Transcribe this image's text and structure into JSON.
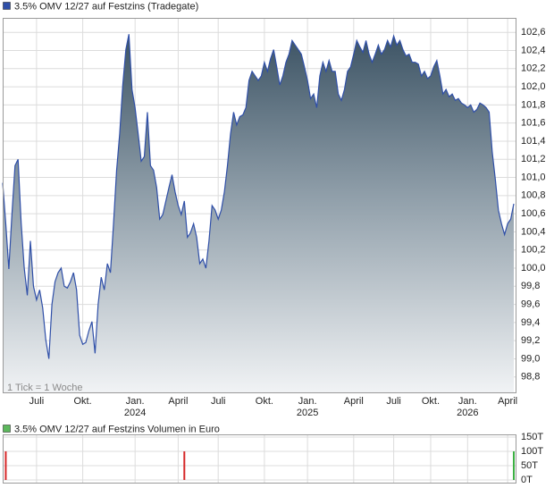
{
  "chart_data": [
    {
      "type": "area",
      "title": "3.5% OMV 12/27 auf Festzins (Tradegate)",
      "annotation": "1 Tick = 1 Woche",
      "color": "#2f4fa8",
      "grid": true,
      "ylim": [
        98.62,
        102.76
      ],
      "yticks": [
        {
          "value": 98.8,
          "label": "98,8"
        },
        {
          "value": 99.0,
          "label": "99,0"
        },
        {
          "value": 99.2,
          "label": "99,2"
        },
        {
          "value": 99.4,
          "label": "99,4"
        },
        {
          "value": 99.6,
          "label": "99,6"
        },
        {
          "value": 99.8,
          "label": "99,8"
        },
        {
          "value": 100.0,
          "label": "100,0"
        },
        {
          "value": 100.2,
          "label": "100,2"
        },
        {
          "value": 100.4,
          "label": "100,4"
        },
        {
          "value": 100.6,
          "label": "100,6"
        },
        {
          "value": 100.8,
          "label": "100,8"
        },
        {
          "value": 101.0,
          "label": "101,0"
        },
        {
          "value": 101.2,
          "label": "101,2"
        },
        {
          "value": 101.4,
          "label": "101,4"
        },
        {
          "value": 101.6,
          "label": "101,6"
        },
        {
          "value": 101.8,
          "label": "101,8"
        },
        {
          "value": 102.0,
          "label": "102,0"
        },
        {
          "value": 102.2,
          "label": "102,2"
        },
        {
          "value": 102.4,
          "label": "102,4"
        },
        {
          "value": 102.6,
          "label": "102,6"
        }
      ],
      "categories": [
        null,
        null,
        null,
        null,
        null,
        null,
        null,
        null,
        null,
        null,
        null,
        "Juli",
        null,
        null,
        null,
        null,
        null,
        null,
        null,
        null,
        null,
        null,
        null,
        null,
        null,
        null,
        "Okt.",
        null,
        null,
        null,
        null,
        null,
        null,
        null,
        null,
        null,
        null,
        null,
        null,
        null,
        null,
        null,
        null,
        "Jan.\n2024",
        null,
        null,
        null,
        null,
        null,
        null,
        null,
        null,
        null,
        null,
        null,
        null,
        null,
        "April",
        null,
        null,
        null,
        null,
        null,
        null,
        null,
        null,
        null,
        null,
        null,
        null,
        "Juli",
        null,
        null,
        null,
        null,
        null,
        null,
        null,
        null,
        null,
        null,
        null,
        null,
        null,
        null,
        "Okt.",
        null,
        null,
        null,
        null,
        null,
        null,
        null,
        null,
        null,
        null,
        null,
        null,
        null,
        "Jan.\n2025",
        null,
        null,
        null,
        null,
        null,
        null,
        null,
        null,
        null,
        null,
        null,
        null,
        null,
        null,
        "April",
        null,
        null,
        null,
        null,
        null,
        null,
        null,
        null,
        null,
        null,
        null,
        null,
        "Juli",
        null,
        null,
        null,
        null,
        null,
        null,
        null,
        null,
        null,
        null,
        null,
        "Okt.",
        null,
        null,
        null,
        null,
        null,
        null,
        null,
        null,
        null,
        null,
        null,
        "Jan.\n2026",
        null,
        null,
        null,
        null,
        null,
        null,
        null,
        null,
        null,
        null,
        null,
        null,
        "April",
        null,
        null
      ],
      "values": [
        100.94,
        100.49,
        99.99,
        100.59,
        101.13,
        101.2,
        100.5,
        100.0,
        99.7,
        100.3,
        99.8,
        99.65,
        99.76,
        99.56,
        99.21,
        99.0,
        99.6,
        99.85,
        99.95,
        100.0,
        99.8,
        99.78,
        99.85,
        99.95,
        99.76,
        99.26,
        99.16,
        99.18,
        99.31,
        99.41,
        99.06,
        99.6,
        99.9,
        99.76,
        100.05,
        99.95,
        100.49,
        101.08,
        101.48,
        102.02,
        102.41,
        102.58,
        101.97,
        101.77,
        101.48,
        101.18,
        101.23,
        101.72,
        101.13,
        101.08,
        100.89,
        100.54,
        100.59,
        100.74,
        100.89,
        101.03,
        100.84,
        100.69,
        100.59,
        100.74,
        100.34,
        100.39,
        100.49,
        100.34,
        100.05,
        100.1,
        100.0,
        100.3,
        100.69,
        100.64,
        100.54,
        100.64,
        100.84,
        101.13,
        101.48,
        101.72,
        101.58,
        101.67,
        101.69,
        101.77,
        102.07,
        102.17,
        102.12,
        102.07,
        102.12,
        102.27,
        102.17,
        102.31,
        102.41,
        102.22,
        102.02,
        102.12,
        102.27,
        102.36,
        102.51,
        102.46,
        102.41,
        102.36,
        102.22,
        102.07,
        101.87,
        101.92,
        101.77,
        102.12,
        102.27,
        102.17,
        102.29,
        102.17,
        102.17,
        101.92,
        101.85,
        101.97,
        102.17,
        102.22,
        102.36,
        102.51,
        102.44,
        102.38,
        102.51,
        102.36,
        102.27,
        102.36,
        102.46,
        102.36,
        102.41,
        102.51,
        102.44,
        102.56,
        102.46,
        102.51,
        102.41,
        102.34,
        102.36,
        102.27,
        102.27,
        102.25,
        102.12,
        102.17,
        102.09,
        102.12,
        102.22,
        102.29,
        102.12,
        101.92,
        101.97,
        101.89,
        101.92,
        101.85,
        101.87,
        101.82,
        101.8,
        101.77,
        101.8,
        101.72,
        101.75,
        101.82,
        101.8,
        101.77,
        101.72,
        101.28,
        100.98,
        100.64,
        100.49,
        100.37,
        100.49,
        100.54,
        100.71
      ]
    },
    {
      "type": "bar",
      "title": "3.5% OMV 12/27 auf Festzins Volumen in Euro",
      "color": "#5cb85c",
      "grid": true,
      "ylim": [
        -12.5,
        159.4
      ],
      "yticks": [
        {
          "value": 0,
          "label": "0T"
        },
        {
          "value": 50,
          "label": "50T"
        },
        {
          "value": 100,
          "label": "100T"
        },
        {
          "value": 150,
          "label": "150T"
        }
      ],
      "values": [
        null,
        100,
        null,
        null,
        null,
        null,
        null,
        null,
        null,
        null,
        null,
        null,
        null,
        null,
        null,
        null,
        null,
        null,
        null,
        null,
        null,
        null,
        null,
        null,
        null,
        null,
        null,
        null,
        null,
        null,
        null,
        null,
        null,
        null,
        null,
        null,
        null,
        null,
        null,
        null,
        null,
        null,
        null,
        null,
        null,
        null,
        null,
        null,
        null,
        null,
        null,
        null,
        null,
        null,
        null,
        null,
        null,
        null,
        null,
        100,
        null,
        null,
        null,
        null,
        null,
        null,
        null,
        null,
        null,
        null,
        null,
        null,
        null,
        null,
        null,
        null,
        null,
        null,
        null,
        null,
        null,
        null,
        null,
        null,
        null,
        null,
        null,
        null,
        null,
        null,
        null,
        null,
        null,
        null,
        null,
        null,
        null,
        null,
        null,
        null,
        null,
        null,
        null,
        null,
        null,
        null,
        null,
        null,
        null,
        null,
        null,
        null,
        null,
        null,
        null,
        null,
        null,
        null,
        null,
        null,
        null,
        null,
        null,
        null,
        null,
        null,
        null,
        null,
        null,
        null,
        null,
        null,
        null,
        null,
        null,
        null,
        null,
        null,
        null,
        null,
        null,
        null,
        null,
        null,
        null,
        null,
        null,
        null,
        null,
        null,
        null,
        null,
        null,
        null,
        null,
        null,
        null,
        null,
        null,
        null,
        null,
        null,
        null,
        null,
        null,
        null,
        100
      ],
      "colors": [
        null,
        "#d62728",
        null,
        null,
        null,
        null,
        null,
        null,
        null,
        null,
        null,
        null,
        null,
        null,
        null,
        null,
        null,
        null,
        null,
        null,
        null,
        null,
        null,
        null,
        null,
        null,
        null,
        null,
        null,
        null,
        null,
        null,
        null,
        null,
        null,
        null,
        null,
        null,
        null,
        null,
        null,
        null,
        null,
        null,
        null,
        null,
        null,
        null,
        null,
        null,
        null,
        null,
        null,
        null,
        null,
        null,
        null,
        null,
        null,
        "#d62728",
        null,
        null,
        null,
        null,
        null,
        null,
        null,
        null,
        null,
        null,
        null,
        null,
        null,
        null,
        null,
        null,
        null,
        null,
        null,
        null,
        null,
        null,
        null,
        null,
        null,
        null,
        null,
        null,
        null,
        null,
        null,
        null,
        null,
        null,
        null,
        null,
        null,
        null,
        null,
        null,
        null,
        null,
        null,
        null,
        null,
        null,
        null,
        null,
        null,
        null,
        null,
        null,
        null,
        null,
        null,
        null,
        null,
        null,
        null,
        null,
        null,
        null,
        null,
        null,
        null,
        null,
        null,
        null,
        null,
        null,
        null,
        null,
        null,
        null,
        null,
        null,
        null,
        null,
        null,
        null,
        null,
        null,
        null,
        null,
        null,
        null,
        null,
        null,
        null,
        null,
        null,
        null,
        null,
        null,
        null,
        null,
        null,
        null,
        null,
        null,
        null,
        null,
        null,
        null,
        null,
        null,
        "#3cb043"
      ]
    }
  ]
}
